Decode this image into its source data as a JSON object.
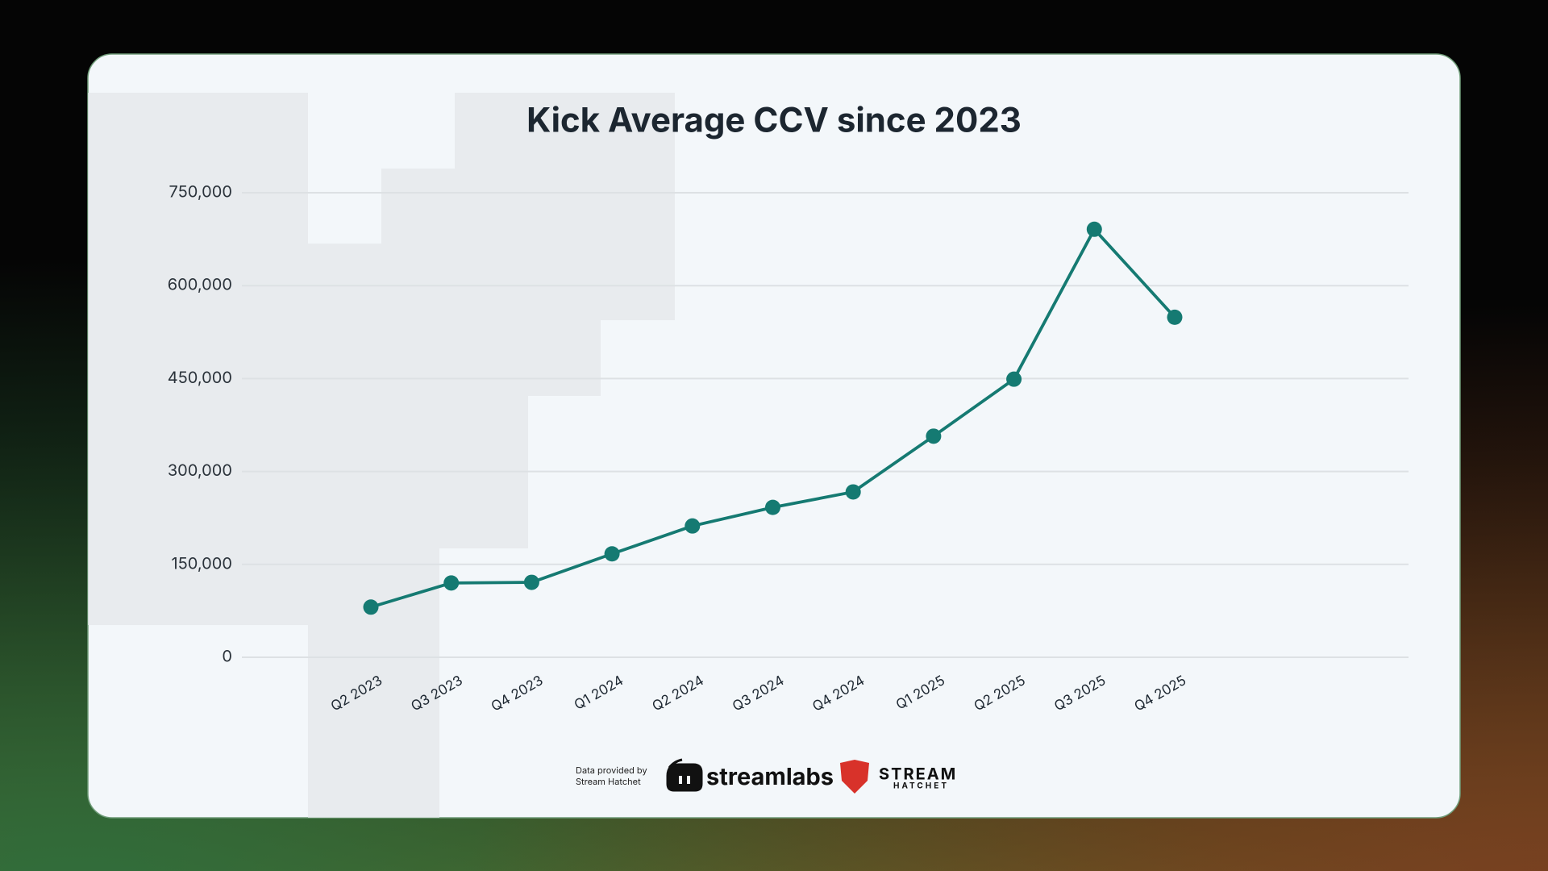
{
  "chart_data": {
    "type": "line",
    "title": "Kick Average CCV since 2023",
    "categories": [
      "Q2 2023",
      "Q3 2023",
      "Q4 2023",
      "Q1 2024",
      "Q2 2024",
      "Q3 2024",
      "Q4 2024",
      "Q1 2025",
      "Q2 2025",
      "Q3 2025",
      "Q4 2025"
    ],
    "values": [
      81000,
      120000,
      121000,
      167000,
      212000,
      242000,
      267000,
      357000,
      449000,
      691000,
      549000
    ],
    "color": "#157a72",
    "ylim": [
      0,
      750000
    ],
    "yticks": [
      0,
      {
        "value": 150000,
        "label": "150,000"
      },
      {
        "value": 300000,
        "label": "300,000"
      },
      {
        "value": 450000,
        "label": "450,000"
      },
      {
        "value": 600000,
        "label": "600,000"
      },
      {
        "value": 750000,
        "label": "750,000"
      }
    ],
    "grid": true
  },
  "footer": {
    "credit": [
      "Data provided by",
      "Stream Hatchet"
    ],
    "brands": [
      "streamlabs",
      "STREAM",
      "HATCHET"
    ]
  }
}
